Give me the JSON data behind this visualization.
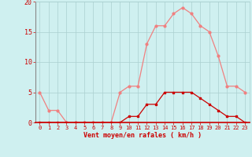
{
  "x": [
    0,
    1,
    2,
    3,
    4,
    5,
    6,
    7,
    8,
    9,
    10,
    11,
    12,
    13,
    14,
    15,
    16,
    17,
    18,
    19,
    20,
    21,
    22,
    23
  ],
  "rafales": [
    5,
    2,
    2,
    0,
    0,
    0,
    0,
    0,
    0,
    5,
    6,
    6,
    13,
    16,
    16,
    18,
    19,
    18,
    16,
    15,
    11,
    6,
    6,
    5
  ],
  "moyen": [
    0,
    0,
    0,
    0,
    0,
    0,
    0,
    0,
    0,
    0,
    1,
    1,
    3,
    3,
    5,
    5,
    5,
    5,
    4,
    3,
    2,
    1,
    1,
    0
  ],
  "line1_color": "#f08080",
  "line2_color": "#cc0000",
  "bg_color": "#cff0f0",
  "grid_color": "#aacfcf",
  "axis_color": "#cc0000",
  "xlabel": "Vent moyen/en rafales ( km/h )",
  "ylim": [
    0,
    20
  ],
  "xlim": [
    -0.5,
    23.5
  ],
  "yticks": [
    0,
    5,
    10,
    15,
    20
  ],
  "xticks": [
    0,
    1,
    2,
    3,
    4,
    5,
    6,
    7,
    8,
    9,
    10,
    11,
    12,
    13,
    14,
    15,
    16,
    17,
    18,
    19,
    20,
    21,
    22,
    23
  ]
}
